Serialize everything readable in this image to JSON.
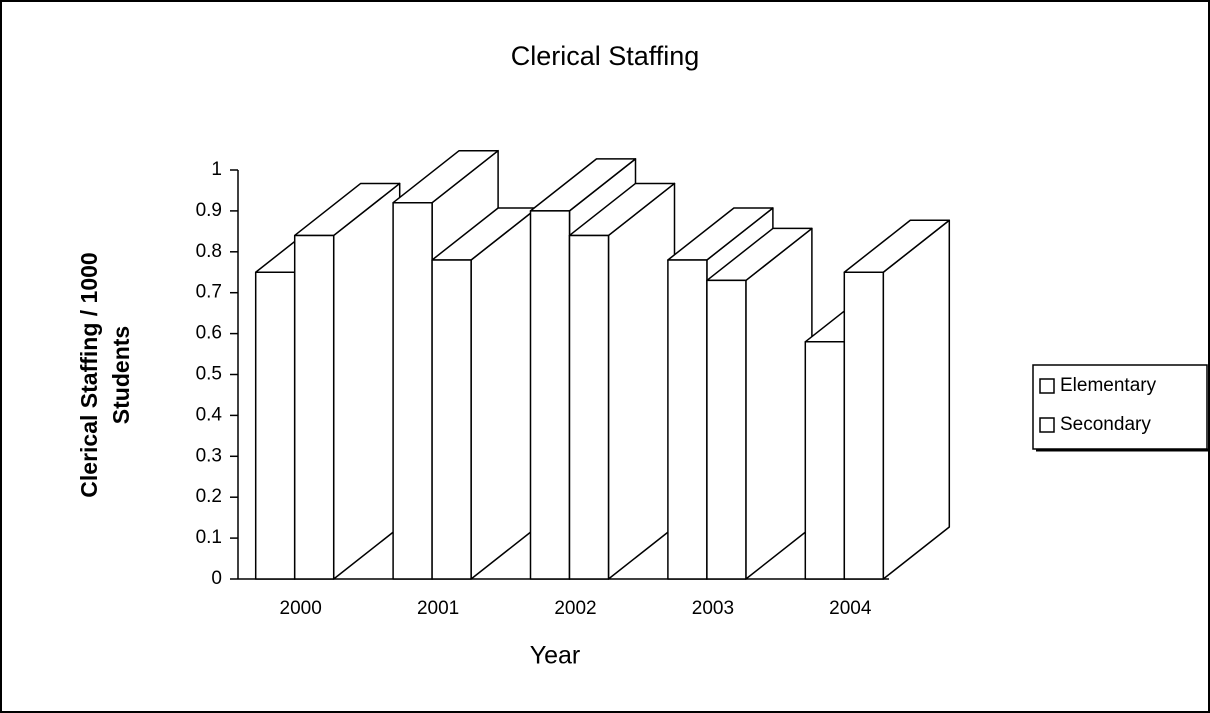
{
  "chart_data": {
    "type": "bar3d",
    "title": "Clerical Staffing",
    "x_label": "Year",
    "y_label": [
      "Clerical Staffing / 1000",
      "Students"
    ],
    "categories": [
      "2000",
      "2001",
      "2002",
      "2003",
      "2004"
    ],
    "series": [
      {
        "name": "Elementary",
        "color": "#ffffff",
        "values": [
          0.75,
          0.92,
          0.9,
          0.78,
          0.58
        ]
      },
      {
        "name": "Secondary",
        "color": "#ffffff",
        "values": [
          0.84,
          0.78,
          0.84,
          0.73,
          0.75
        ]
      }
    ],
    "ylim": [
      0,
      1
    ],
    "yticks": [
      0,
      0.1,
      0.2,
      0.3,
      0.4,
      0.5,
      0.6,
      0.7,
      0.8,
      0.9,
      1
    ],
    "legend": "right"
  }
}
